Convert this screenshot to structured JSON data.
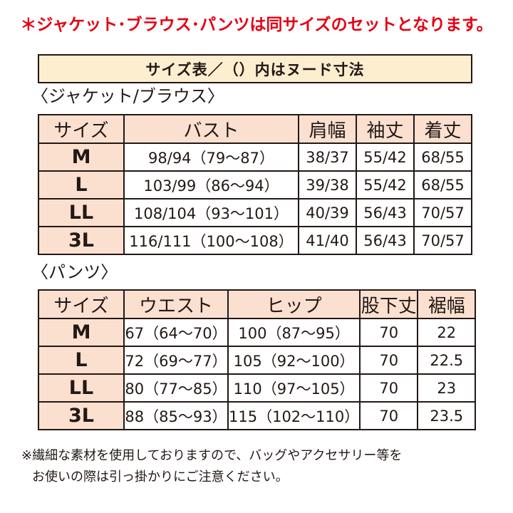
{
  "colors": {
    "notice_text": "#e60012",
    "header_fill": "#fbe0d0",
    "size_fill": "#fbe0d0",
    "title_fill": "#fdeed0",
    "border": "#231815",
    "text": "#231815"
  },
  "notice": "＊ジャケット･ブラウス･パンツは同サイズのセットとなります。",
  "title": "サイズ表／（）内はヌード寸法",
  "jacket": {
    "label": "〈ジャケット/ブラウス〉",
    "headers": [
      "サイズ",
      "バスト",
      "肩幅",
      "袖丈",
      "着丈"
    ],
    "rows": [
      [
        "M",
        "98/94（79～87）",
        "38/37",
        "55/42",
        "68/55"
      ],
      [
        "L",
        "103/99（86～94）",
        "39/38",
        "55/42",
        "68/55"
      ],
      [
        "LL",
        "108/104（93～101）",
        "40/39",
        "56/43",
        "70/57"
      ],
      [
        "3L",
        "116/111（100～108）",
        "41/40",
        "56/43",
        "70/57"
      ]
    ]
  },
  "pants": {
    "label": "〈パンツ〉",
    "headers": [
      "サイズ",
      "ウエスト",
      "ヒップ",
      "股下丈",
      "裾幅"
    ],
    "rows": [
      [
        "M",
        "67（64～70）",
        "100（87～95）",
        "70",
        "22"
      ],
      [
        "L",
        "72（69～77）",
        "105（92～100）",
        "70",
        "22.5"
      ],
      [
        "LL",
        "80（77～85）",
        "110（97～105）",
        "70",
        "23"
      ],
      [
        "3L",
        "88（85～93）",
        "115（102～110）",
        "70",
        "23.5"
      ]
    ]
  },
  "footnote": {
    "line1": "※繊細な素材を使用しておりますので、バッグやアクセサリー等を",
    "line2": "お使いの際は引っ掛かりにご注意ください。"
  }
}
